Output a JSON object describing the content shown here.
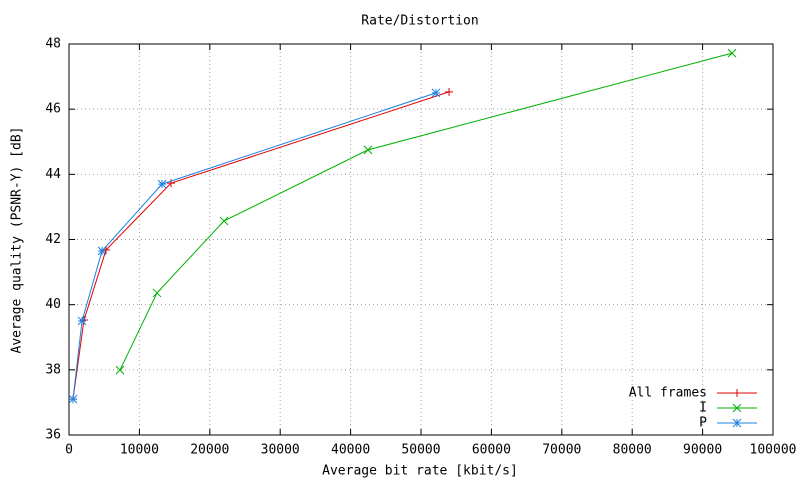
{
  "chart_data": {
    "type": "line",
    "title": "Rate/Distortion",
    "x_label": "Average bit rate [kbit/s]",
    "y_label": "Average quality (PSNR-Y) [dB]",
    "xlim": [
      0,
      100000
    ],
    "xticks": [
      0,
      10000,
      20000,
      30000,
      40000,
      50000,
      60000,
      70000,
      80000,
      90000,
      100000
    ],
    "ylim": [
      36,
      48
    ],
    "yticks": [
      36,
      38,
      40,
      42,
      44,
      46,
      48
    ],
    "grid": true,
    "legend": "bottom-right",
    "series": [
      {
        "name": "All frames",
        "color": "#e00000",
        "marker": "plus",
        "x": [
          570,
          2130,
          5260,
          14490,
          53980
        ],
        "values": [
          37.1,
          39.53,
          41.68,
          43.73,
          46.53
        ]
      },
      {
        "name": "I",
        "color": "#00b000",
        "marker": "cross",
        "x": [
          7240,
          12500,
          22020,
          42470,
          94180
        ],
        "values": [
          37.99,
          40.36,
          42.57,
          44.75,
          47.72
        ]
      },
      {
        "name": "P",
        "color": "#1e80e0",
        "marker": "star",
        "x": [
          570,
          1850,
          4690,
          13210,
          52130
        ],
        "values": [
          37.1,
          39.5,
          41.65,
          43.7,
          46.5
        ]
      }
    ]
  }
}
